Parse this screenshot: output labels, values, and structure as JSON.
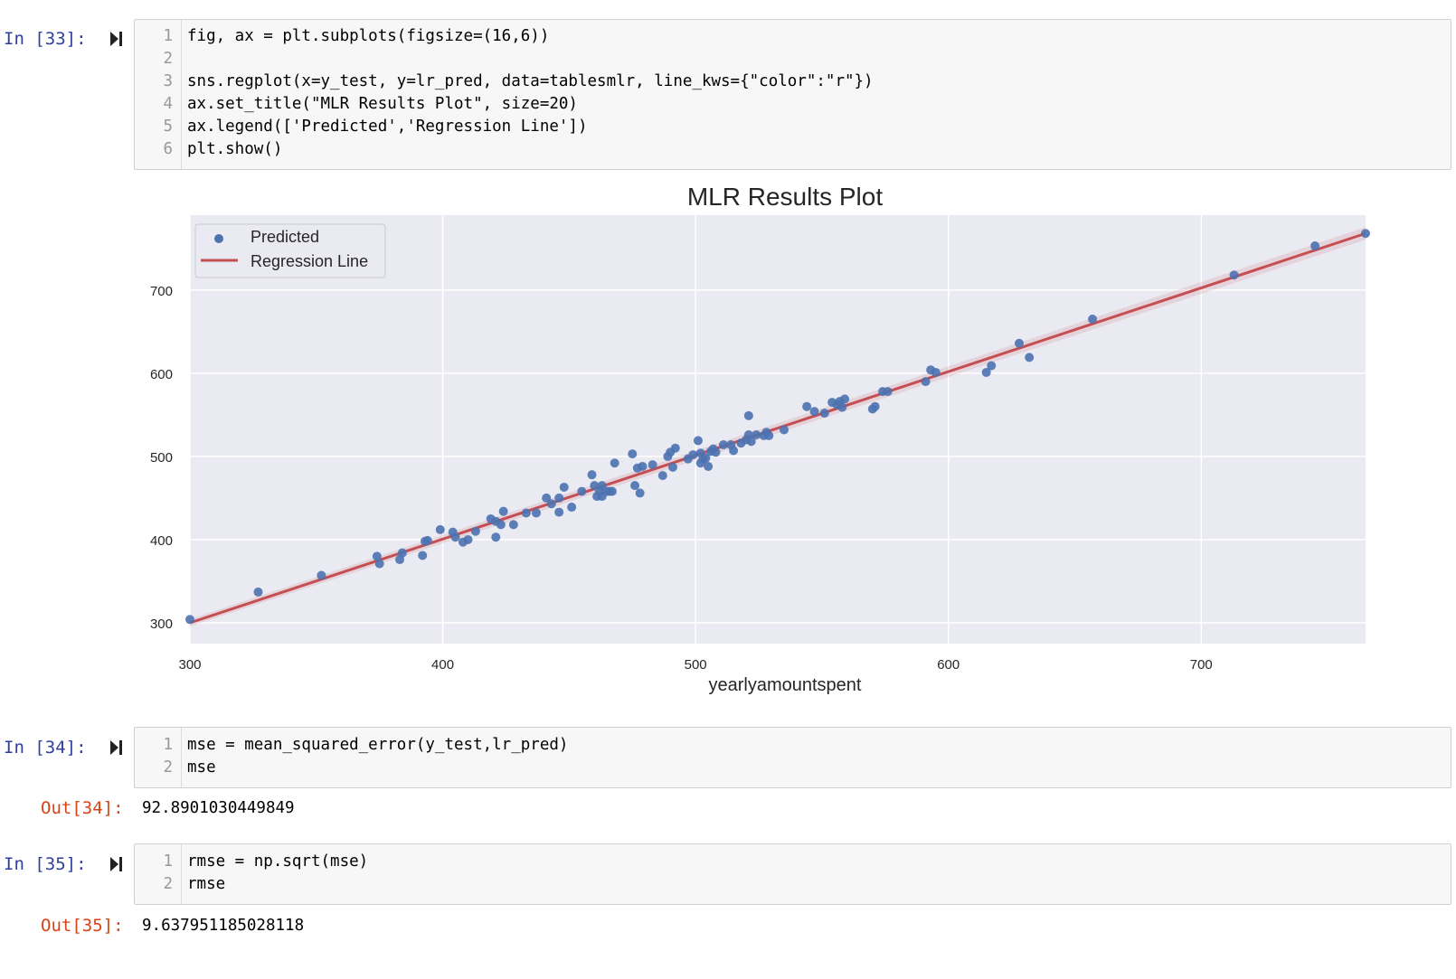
{
  "cells": [
    {
      "prompt": "In [33]:",
      "lines": [
        {
          "n": "1",
          "code": "fig, ax = plt.subplots(figsize=(16,6))"
        },
        {
          "n": "2",
          "code": ""
        },
        {
          "n": "3",
          "code": "sns.regplot(x=y_test, y=lr_pred, data=tablesmlr, line_kws={\"color\":\"r\"})"
        },
        {
          "n": "4",
          "code": "ax.set_title(\"MLR Results Plot\", size=20)"
        },
        {
          "n": "5",
          "code": "ax.legend(['Predicted','Regression Line'])"
        },
        {
          "n": "6",
          "code": "plt.show()"
        }
      ]
    },
    {
      "prompt": "In [34]:",
      "lines": [
        {
          "n": "1",
          "code": "mse = mean_squared_error(y_test,lr_pred)"
        },
        {
          "n": "2",
          "code": "mse"
        }
      ],
      "out_prompt": "Out[34]:",
      "output": "92.8901030449849"
    },
    {
      "prompt": "In [35]:",
      "lines": [
        {
          "n": "1",
          "code": "rmse = np.sqrt(mse)"
        },
        {
          "n": "2",
          "code": "rmse"
        }
      ],
      "out_prompt": "Out[35]:",
      "output": "9.637951185028118"
    }
  ],
  "icons": {
    "run": "run-cell-icon"
  },
  "colors": {
    "plot_bg": "#eaeaf2",
    "points": "#4c72b0",
    "regression_line": "#c44e52",
    "in_prompt": "#303f9f",
    "out_prompt": "#d84315"
  },
  "chart_data": {
    "type": "scatter",
    "title": "MLR Results Plot",
    "xlabel": "yearlyamountspent",
    "ylabel": "",
    "xlim": [
      300,
      765
    ],
    "ylim": [
      275,
      790
    ],
    "xticks": [
      300,
      400,
      500,
      600,
      700
    ],
    "yticks": [
      300,
      400,
      500,
      600,
      700
    ],
    "grid": true,
    "legend": {
      "position": "top-left",
      "entries": [
        "Predicted",
        "Regression Line"
      ]
    },
    "series": [
      {
        "name": "Predicted",
        "kind": "points",
        "x": [
          300,
          327,
          352,
          374,
          375,
          383,
          384,
          392,
          393,
          394,
          399,
          404,
          405,
          408,
          410,
          413,
          419,
          421,
          421,
          423,
          424,
          428,
          433,
          437,
          441,
          443,
          446,
          446,
          448,
          451,
          455,
          459,
          460,
          461,
          462,
          463,
          463,
          465,
          466,
          467,
          468,
          475,
          476,
          477,
          478,
          479,
          483,
          487,
          489,
          490,
          491,
          492,
          497,
          499,
          501,
          502,
          502,
          503,
          504,
          505,
          506,
          507,
          508,
          511,
          514,
          515,
          518,
          520,
          521,
          521,
          522,
          524,
          527,
          528,
          529,
          535,
          544,
          547,
          551,
          554,
          556,
          557,
          558,
          559,
          570,
          571,
          574,
          576,
          591,
          593,
          595,
          615,
          617,
          628,
          632,
          657,
          713,
          745,
          765
        ],
        "y": [
          304,
          337,
          357,
          380,
          371,
          376,
          384,
          381,
          398,
          399,
          412,
          409,
          403,
          397,
          400,
          410,
          425,
          403,
          422,
          418,
          434,
          418,
          432,
          432,
          450,
          443,
          450,
          433,
          463,
          439,
          458,
          478,
          465,
          452,
          458,
          452,
          465,
          458,
          458,
          458,
          492,
          503,
          465,
          486,
          456,
          488,
          490,
          477,
          500,
          505,
          487,
          510,
          497,
          502,
          519,
          492,
          504,
          497,
          498,
          488,
          506,
          509,
          505,
          514,
          514,
          507,
          516,
          520,
          526,
          549,
          518,
          526,
          525,
          529,
          525,
          532,
          560,
          554,
          552,
          565,
          562,
          566,
          559,
          569,
          557,
          560,
          578,
          578,
          590,
          604,
          601,
          601,
          609,
          636,
          619,
          665,
          718,
          753,
          768
        ]
      },
      {
        "name": "Regression Line",
        "kind": "line",
        "x": [
          300,
          765
        ],
        "y": [
          300,
          768
        ]
      }
    ]
  }
}
